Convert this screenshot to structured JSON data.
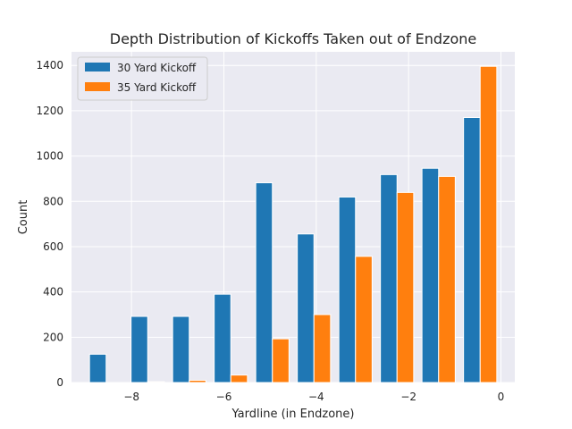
{
  "chart_data": {
    "type": "bar",
    "title": "Depth Distribution of Kickoffs Taken out of Endzone",
    "xlabel": "Yardline (in Endzone)",
    "ylabel": "Count",
    "xlim": [
      -9.3,
      0.3
    ],
    "ylim": [
      0,
      1460
    ],
    "x_ticks": [
      -8,
      -6,
      -4,
      -2,
      0
    ],
    "x_tick_labels": [
      "−8",
      "−6",
      "−4",
      "−2",
      "0"
    ],
    "y_ticks": [
      0,
      200,
      400,
      600,
      800,
      1000,
      1200,
      1400
    ],
    "y_tick_labels": [
      "0",
      "200",
      "400",
      "600",
      "800",
      "1000",
      "1200",
      "1400"
    ],
    "grid": true,
    "legend_position": "top-left",
    "bins": [
      [
        -9.0,
        -8.1
      ],
      [
        -8.1,
        -7.2
      ],
      [
        -7.2,
        -6.3
      ],
      [
        -6.3,
        -5.4
      ],
      [
        -5.4,
        -4.5
      ],
      [
        -4.5,
        -3.6
      ],
      [
        -3.6,
        -2.7
      ],
      [
        -2.7,
        -1.8
      ],
      [
        -1.8,
        -0.9
      ],
      [
        -0.9,
        0.0
      ]
    ],
    "series": [
      {
        "name": "30 Yard Kickoff",
        "color": "#1f77b4",
        "values": [
          125,
          292,
          292,
          390,
          882,
          656,
          819,
          918,
          946,
          1170
        ]
      },
      {
        "name": "35 Yard Kickoff",
        "color": "#ff7f0e",
        "values": [
          0,
          4,
          10,
          33,
          193,
          300,
          557,
          839,
          910,
          1396
        ]
      }
    ]
  },
  "style": {
    "plot_background": "#eaeaf2",
    "grid_color": "#ffffff",
    "bar_edge": "#ffffff",
    "legend_background": "#eaeaf2",
    "legend_border": "#cccccc"
  }
}
